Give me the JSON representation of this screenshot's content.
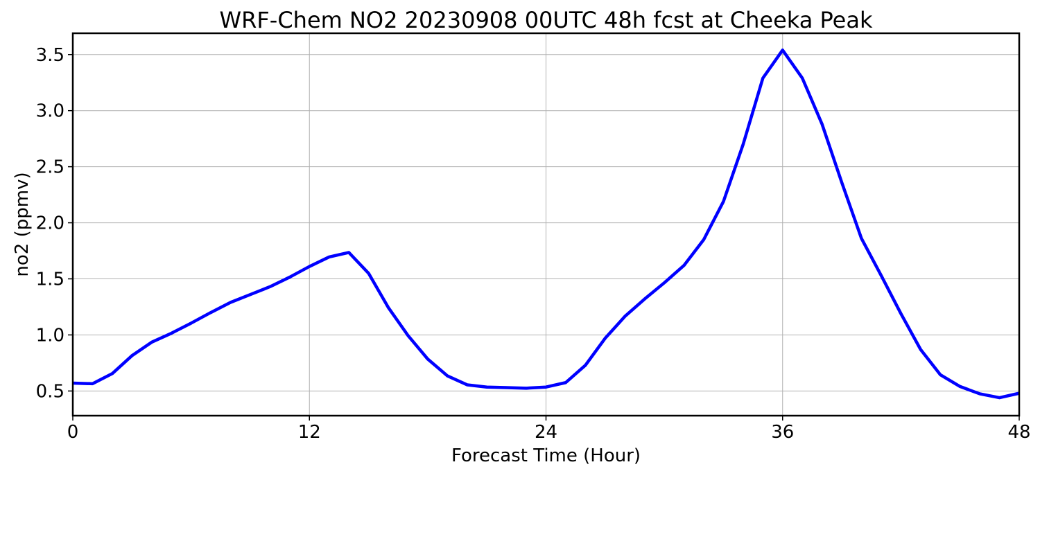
{
  "chart_data": {
    "type": "line",
    "title": "WRF-Chem NO2  20230908 00UTC 48h fcst at Cheeka Peak",
    "xlabel": "Forecast Time (Hour)",
    "ylabel": "no2  (ppmv)",
    "xlim": [
      0,
      48
    ],
    "ylim": [
      0.28,
      3.69
    ],
    "xticks": [
      0,
      12,
      24,
      36,
      48
    ],
    "xtick_labels": [
      "0",
      "12",
      "24",
      "36",
      "48"
    ],
    "yticks": [
      0.5,
      1.0,
      1.5,
      2.0,
      2.5,
      3.0,
      3.5
    ],
    "ytick_labels": [
      "0.5",
      "1.0",
      "1.5",
      "2.0",
      "2.5",
      "3.0",
      "3.5"
    ],
    "grid": true,
    "legend": "none",
    "series": [
      {
        "color": "#0000ff",
        "x": [
          0,
          1,
          2,
          3,
          4,
          5,
          6,
          7,
          8,
          9,
          10,
          11,
          12,
          13,
          14,
          15,
          16,
          17,
          18,
          19,
          20,
          21,
          22,
          23,
          24,
          25,
          26,
          27,
          28,
          29,
          30,
          31,
          32,
          33,
          34,
          35,
          36,
          37,
          38,
          39,
          40,
          41,
          42,
          43,
          44,
          45,
          46,
          47,
          48
        ],
        "y": [
          0.57,
          0.565,
          0.655,
          0.815,
          0.935,
          1.015,
          1.105,
          1.2,
          1.29,
          1.36,
          1.43,
          1.515,
          1.61,
          1.695,
          1.735,
          1.55,
          1.245,
          0.995,
          0.785,
          0.635,
          0.555,
          0.535,
          0.53,
          0.525,
          0.535,
          0.575,
          0.73,
          0.97,
          1.165,
          1.32,
          1.465,
          1.62,
          1.85,
          2.19,
          2.7,
          3.29,
          3.54,
          3.29,
          2.88,
          2.36,
          1.86,
          1.53,
          1.19,
          0.87,
          0.645,
          0.54,
          0.475,
          0.44,
          0.48
        ]
      }
    ]
  }
}
